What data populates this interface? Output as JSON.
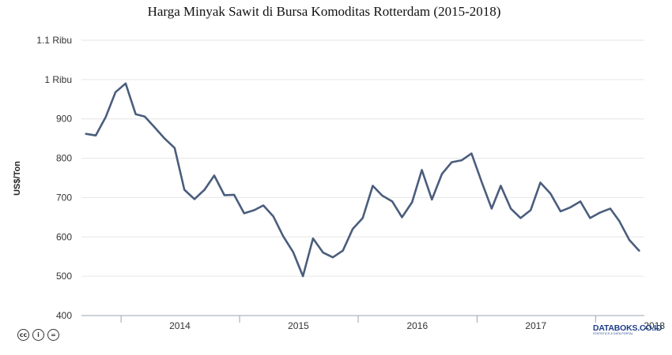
{
  "chart_data": {
    "type": "line",
    "title": "Harga Minyak Sawit di Bursa Komoditas Rotterdam (2015-2018)",
    "ylabel": "US$/Ton",
    "xlabel": "",
    "ylim": [
      400,
      1100
    ],
    "yticks": [
      {
        "value": 400,
        "label": "400"
      },
      {
        "value": 500,
        "label": "500"
      },
      {
        "value": 600,
        "label": "600"
      },
      {
        "value": 700,
        "label": "700"
      },
      {
        "value": 800,
        "label": "800"
      },
      {
        "value": 900,
        "label": "900"
      },
      {
        "value": 1000,
        "label": "1 Ribu"
      },
      {
        "value": 1100,
        "label": "1.1 Ribu"
      }
    ],
    "xlim": [
      "2013-09-01",
      "2018-05-31"
    ],
    "xticks": [
      "2014",
      "2015",
      "2016",
      "2017",
      "2018"
    ],
    "grid": true,
    "legend": "none",
    "color": "#4a5d7c",
    "series": [
      {
        "x": [
          "2013-09",
          "2013-10",
          "2013-11",
          "2013-12",
          "2014-01",
          "2014-02",
          "2014-03",
          "2014-04",
          "2014-05",
          "2014-06",
          "2014-07",
          "2014-08",
          "2014-09",
          "2014-10",
          "2014-11",
          "2014-12",
          "2015-01",
          "2015-02",
          "2015-03",
          "2015-04",
          "2015-05",
          "2015-06",
          "2015-07",
          "2015-08",
          "2015-09",
          "2015-10",
          "2015-11",
          "2015-12",
          "2016-01",
          "2016-02",
          "2016-03",
          "2016-04",
          "2016-05",
          "2016-06",
          "2016-07",
          "2016-08",
          "2016-09",
          "2016-10",
          "2016-11",
          "2016-12",
          "2017-01",
          "2017-02",
          "2017-03",
          "2017-04",
          "2017-05",
          "2017-06",
          "2017-07",
          "2017-08",
          "2017-09",
          "2017-10",
          "2017-11",
          "2017-12",
          "2018-01",
          "2018-02",
          "2018-03",
          "2018-04",
          "2018-05"
        ],
        "values": [
          862,
          858,
          905,
          968,
          990,
          912,
          906,
          878,
          850,
          826,
          720,
          696,
          720,
          756,
          706,
          707,
          660,
          668,
          680,
          652,
          602,
          561,
          500,
          596,
          560,
          548,
          565,
          620,
          648,
          730,
          705,
          690,
          650,
          688,
          770,
          695,
          760,
          790,
          795,
          812,
          740,
          672,
          730,
          672,
          648,
          668,
          738,
          710,
          665,
          675,
          690,
          648,
          662,
          672,
          640,
          592,
          565
        ]
      }
    ]
  },
  "footer": {
    "license_icons": [
      "creative-commons-icon",
      "attribution-icon",
      "no-derivatives-icon"
    ],
    "license_glyphs": [
      "cc",
      "i",
      "="
    ],
    "brand": "DATABOKS.CO.ID",
    "brand_tagline": "STATISTICS & DATA PORTAL"
  }
}
